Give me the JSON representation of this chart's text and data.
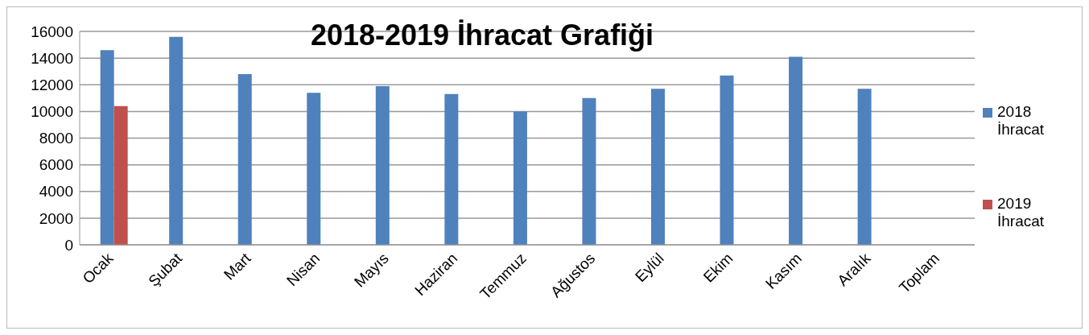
{
  "chart_data": {
    "type": "bar",
    "title": "2018-2019 İhracat Grafiği",
    "categories": [
      "Ocak",
      "Şubat",
      "Mart",
      "Nisan",
      "Mayıs",
      "Haziran",
      "Temmuz",
      "Ağustos",
      "Eylül",
      "Ekim",
      "Kasım",
      "Aralık",
      "Toplam"
    ],
    "series": [
      {
        "name": "2018 İhracat",
        "color": "#4f81bd",
        "values": [
          14600,
          15600,
          12800,
          11400,
          11900,
          11300,
          10000,
          11000,
          11700,
          12700,
          14100,
          11700,
          null
        ]
      },
      {
        "name": "2019 İhracat",
        "color": "#c0504d",
        "values": [
          10400,
          null,
          null,
          null,
          null,
          null,
          null,
          null,
          null,
          null,
          null,
          null,
          null
        ]
      }
    ],
    "ylim": [
      0,
      16000
    ],
    "yticks": [
      0,
      2000,
      4000,
      6000,
      8000,
      10000,
      12000,
      14000,
      16000
    ],
    "grid": "y",
    "legend": "right"
  }
}
